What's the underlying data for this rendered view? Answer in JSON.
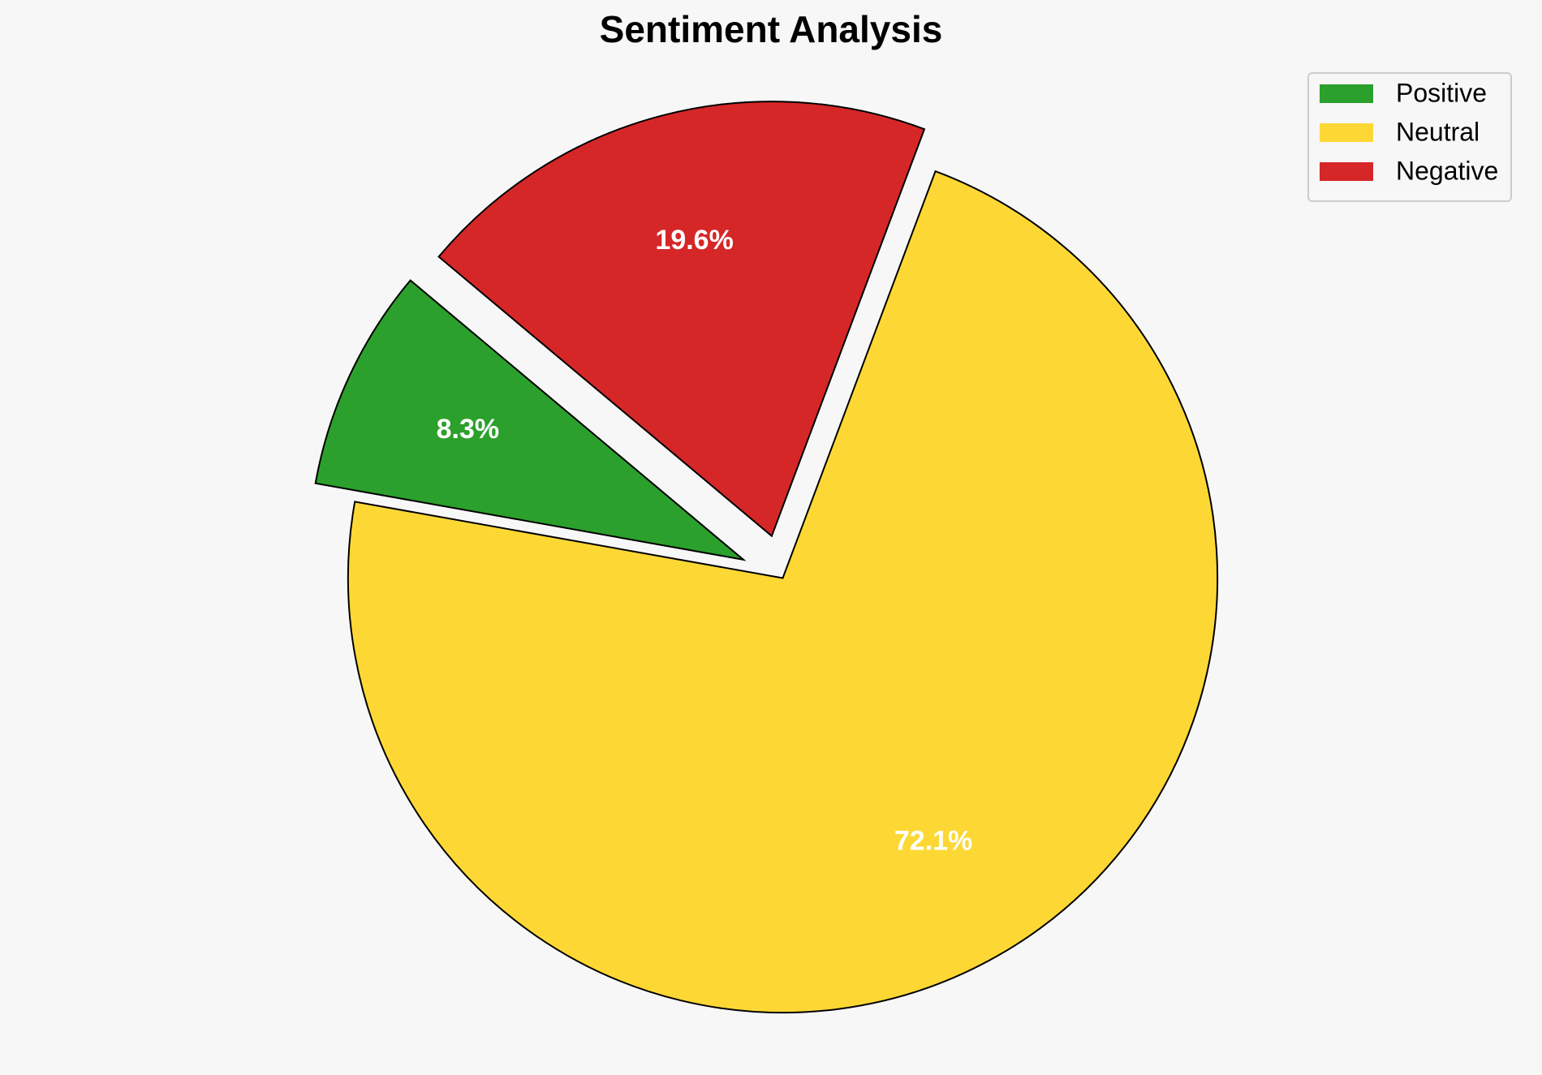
{
  "chart_data": {
    "type": "pie",
    "title": "Sentiment Analysis",
    "categories": [
      "Positive",
      "Neutral",
      "Negative"
    ],
    "values": [
      8.3,
      72.1,
      19.6
    ],
    "value_labels": [
      "8.3%",
      "72.1%",
      "19.6%"
    ],
    "colors": [
      "#2ca02c",
      "#fdd835",
      "#d62728"
    ],
    "explode": [
      0.1,
      0,
      0.1
    ],
    "legend": "upper right"
  }
}
